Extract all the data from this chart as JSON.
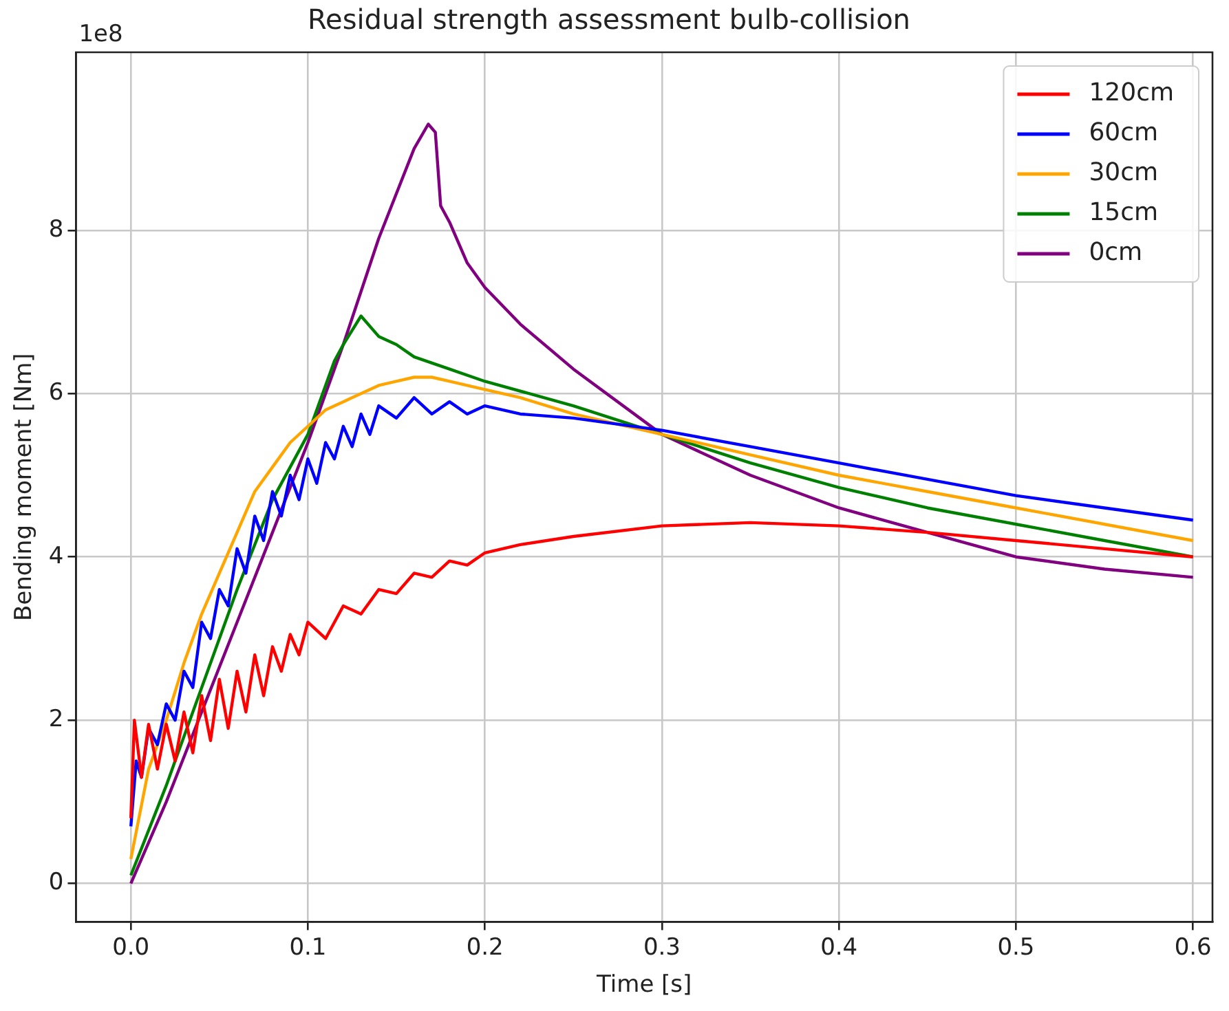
{
  "chart_data": {
    "type": "line",
    "title": "Residual strength assessment bulb-collision",
    "xlabel": "Time [s]",
    "ylabel": "Bending moment [Nm]",
    "annotations": [
      "1e8"
    ],
    "xlim": [
      -0.031,
      0.611
    ],
    "ylim": [
      -0.47,
      10.18
    ],
    "xticks": [
      {
        "value": 0,
        "label": "0.0"
      },
      {
        "value": 0.1,
        "label": "0.1"
      },
      {
        "value": 0.2,
        "label": "0.2"
      },
      {
        "value": 0.3,
        "label": "0.3"
      },
      {
        "value": 0.4,
        "label": "0.4"
      },
      {
        "value": 0.5,
        "label": "0.5"
      },
      {
        "value": 0.6,
        "label": "0.6"
      }
    ],
    "yticks": [
      0,
      2,
      4,
      6,
      8
    ],
    "grid": true,
    "legend": "top right",
    "marker": "none",
    "line_style": "solid",
    "series": [
      {
        "name": "120cm",
        "color": "#ff0000",
        "x": [
          0,
          0.002,
          0.006,
          0.01,
          0.015,
          0.02,
          0.025,
          0.03,
          0.035,
          0.04,
          0.045,
          0.05,
          0.055,
          0.06,
          0.065,
          0.07,
          0.075,
          0.08,
          0.085,
          0.09,
          0.095,
          0.1,
          0.11,
          0.12,
          0.13,
          0.14,
          0.15,
          0.16,
          0.17,
          0.18,
          0.19,
          0.2,
          0.22,
          0.25,
          0.3,
          0.35,
          0.4,
          0.45,
          0.5,
          0.55,
          0.6
        ],
        "values": [
          0.8,
          2.0,
          1.3,
          1.95,
          1.4,
          1.95,
          1.5,
          2.1,
          1.6,
          2.3,
          1.75,
          2.5,
          1.9,
          2.6,
          2.1,
          2.8,
          2.3,
          2.9,
          2.6,
          3.05,
          2.8,
          3.2,
          3.0,
          3.4,
          3.3,
          3.6,
          3.55,
          3.8,
          3.75,
          3.95,
          3.9,
          4.05,
          4.15,
          4.25,
          4.38,
          4.42,
          4.38,
          4.3,
          4.2,
          4.1,
          4.0
        ]
      },
      {
        "name": "60cm",
        "color": "#0000ff",
        "x": [
          0,
          0.003,
          0.006,
          0.01,
          0.015,
          0.02,
          0.025,
          0.03,
          0.035,
          0.04,
          0.045,
          0.05,
          0.055,
          0.06,
          0.065,
          0.07,
          0.075,
          0.08,
          0.085,
          0.09,
          0.095,
          0.1,
          0.105,
          0.11,
          0.115,
          0.12,
          0.125,
          0.13,
          0.135,
          0.14,
          0.15,
          0.16,
          0.17,
          0.18,
          0.19,
          0.2,
          0.22,
          0.25,
          0.3,
          0.35,
          0.4,
          0.45,
          0.5,
          0.55,
          0.6
        ],
        "values": [
          0.7,
          1.5,
          1.3,
          1.9,
          1.7,
          2.2,
          2.0,
          2.6,
          2.4,
          3.2,
          3.0,
          3.6,
          3.4,
          4.1,
          3.8,
          4.5,
          4.2,
          4.8,
          4.5,
          5.0,
          4.7,
          5.2,
          4.9,
          5.4,
          5.2,
          5.6,
          5.35,
          5.75,
          5.5,
          5.85,
          5.7,
          5.95,
          5.75,
          5.9,
          5.75,
          5.85,
          5.75,
          5.7,
          5.55,
          5.35,
          5.15,
          4.95,
          4.75,
          4.6,
          4.45
        ]
      },
      {
        "name": "30cm",
        "color": "#ffa500",
        "x": [
          0,
          0.01,
          0.02,
          0.03,
          0.04,
          0.05,
          0.06,
          0.07,
          0.08,
          0.09,
          0.1,
          0.11,
          0.12,
          0.13,
          0.14,
          0.15,
          0.16,
          0.17,
          0.18,
          0.2,
          0.22,
          0.25,
          0.3,
          0.35,
          0.4,
          0.45,
          0.5,
          0.55,
          0.6
        ],
        "values": [
          0.3,
          1.4,
          2.0,
          2.7,
          3.3,
          3.8,
          4.3,
          4.8,
          5.1,
          5.4,
          5.6,
          5.8,
          5.9,
          6.0,
          6.1,
          6.15,
          6.2,
          6.2,
          6.15,
          6.05,
          5.95,
          5.75,
          5.5,
          5.25,
          5.0,
          4.8,
          4.6,
          4.4,
          4.2
        ]
      },
      {
        "name": "15cm",
        "color": "#008000",
        "x": [
          0,
          0.02,
          0.04,
          0.06,
          0.08,
          0.1,
          0.115,
          0.12,
          0.13,
          0.14,
          0.15,
          0.16,
          0.18,
          0.2,
          0.25,
          0.3,
          0.35,
          0.4,
          0.45,
          0.5,
          0.55,
          0.6
        ],
        "values": [
          0.1,
          1.2,
          2.4,
          3.6,
          4.7,
          5.5,
          6.4,
          6.6,
          6.95,
          6.7,
          6.6,
          6.45,
          6.3,
          6.15,
          5.85,
          5.5,
          5.15,
          4.85,
          4.6,
          4.4,
          4.2,
          4.0
        ]
      },
      {
        "name": "0cm",
        "color": "#800080",
        "x": [
          0,
          0.02,
          0.04,
          0.06,
          0.08,
          0.1,
          0.12,
          0.14,
          0.16,
          0.168,
          0.172,
          0.175,
          0.18,
          0.19,
          0.2,
          0.22,
          0.25,
          0.3,
          0.35,
          0.4,
          0.45,
          0.5,
          0.55,
          0.6
        ],
        "values": [
          0,
          1.0,
          2.1,
          3.2,
          4.3,
          5.4,
          6.6,
          7.9,
          9.0,
          9.3,
          9.2,
          8.3,
          8.1,
          7.6,
          7.3,
          6.85,
          6.3,
          5.5,
          5.0,
          4.6,
          4.3,
          4.0,
          3.85,
          3.75
        ]
      }
    ]
  }
}
